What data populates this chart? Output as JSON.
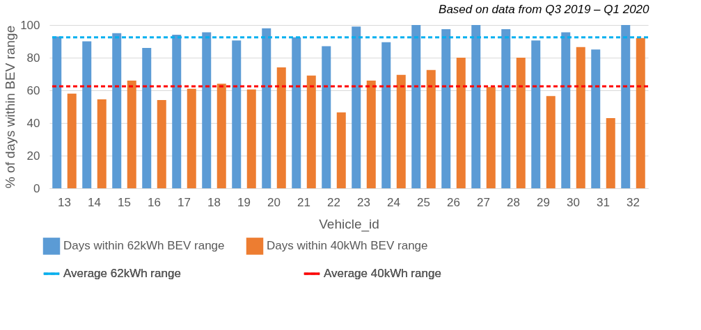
{
  "chart_data": {
    "type": "bar",
    "title": "Based on data from Q3 2019 – Q1 2020",
    "xlabel": "Vehicle_id",
    "ylabel": "% of days within BEV range",
    "categories": [
      "13",
      "14",
      "15",
      "16",
      "17",
      "18",
      "19",
      "20",
      "21",
      "22",
      "23",
      "24",
      "25",
      "26",
      "27",
      "28",
      "29",
      "30",
      "31",
      "32"
    ],
    "series": [
      {
        "name": "Days within 62kWh BEV range",
        "color": "#5b9bd5",
        "values": [
          93,
          90,
          95,
          86,
          94,
          95.5,
          90.5,
          98,
          92.5,
          87,
          99,
          89.5,
          100,
          97.5,
          100,
          97.5,
          90.5,
          95.5,
          85,
          100
        ]
      },
      {
        "name": "Days within 40kWh BEV range",
        "color": "#ed7d31",
        "values": [
          58,
          54.5,
          66,
          54,
          61,
          64,
          60.5,
          74,
          69,
          46.5,
          66,
          69.5,
          72.5,
          80,
          62,
          80,
          56.5,
          86.5,
          43,
          92
        ]
      }
    ],
    "ref_lines": [
      {
        "axis": "y",
        "value": 92.5,
        "label": "Average 62kWh range",
        "color": "#00b0f0",
        "line_style": "dashed"
      },
      {
        "axis": "y",
        "value": 62.5,
        "label": "Average 40kWh range",
        "color": "#ff0000",
        "line_style": "dashed"
      }
    ],
    "ylim": [
      0,
      100
    ],
    "yticks": [
      0,
      20,
      40,
      60,
      80,
      100
    ],
    "grid": "y",
    "legend": "bottom"
  }
}
